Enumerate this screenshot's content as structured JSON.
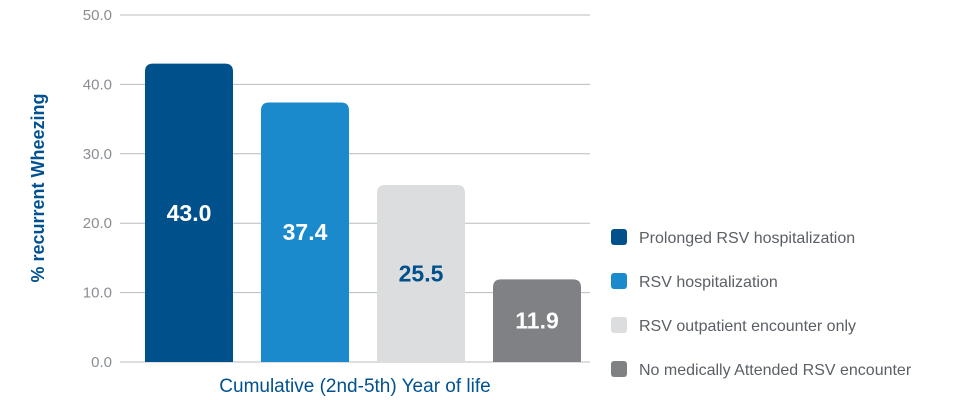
{
  "chart_data": {
    "type": "bar",
    "ylabel": "% recurrent Wheezing",
    "xlabel": "Cumulative (2nd-5th) Year of life",
    "ylim": [
      0,
      50
    ],
    "yticks": [
      "0.0",
      "10.0",
      "20.0",
      "30.0",
      "40.0",
      "50.0"
    ],
    "grid": true,
    "legend_position": "right",
    "series": [
      {
        "name": "Prolonged RSV hospitalization",
        "value": 43.0,
        "label": "43.0",
        "color": "#00508c",
        "label_color": "#ffffff"
      },
      {
        "name": "RSV hospitalization",
        "value": 37.4,
        "label": "37.4",
        "color": "#1a8acc",
        "label_color": "#ffffff"
      },
      {
        "name": "RSV outpatient encounter only",
        "value": 25.5,
        "label": "25.5",
        "color": "#dcdddf",
        "label_color": "#00508c"
      },
      {
        "name": "No medically Attended RSV encounter",
        "value": 11.9,
        "label": "11.9",
        "color": "#7f8184",
        "label_color": "#ffffff"
      }
    ]
  }
}
